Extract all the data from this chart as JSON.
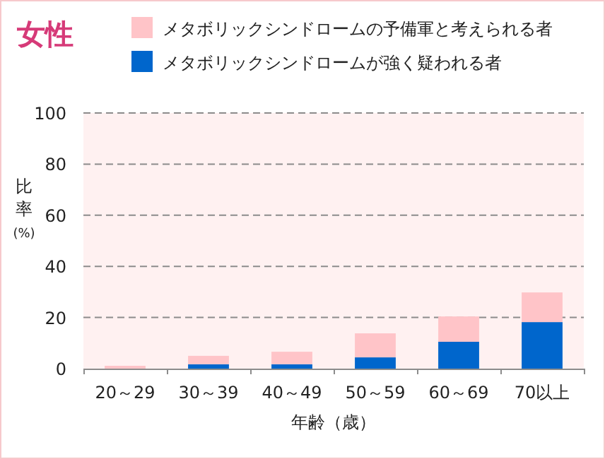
{
  "chart_data": {
    "type": "bar",
    "title": "女性",
    "stacked": true,
    "xlabel": "年齢（歳）",
    "ylabel": "比率(%)",
    "categories": [
      "20～29",
      "30～39",
      "40～49",
      "50～59",
      "60～69",
      "70以上"
    ],
    "series": [
      {
        "name": "メタボリックシンドロームが強く疑われる者",
        "color": "#0066cc",
        "values": [
          0,
          1.7,
          1.7,
          4.4,
          10.5,
          18.2
        ]
      },
      {
        "name": "メタボリックシンドロームの予備軍と考えられる者",
        "color": "#ffc4c8",
        "values": [
          1.1,
          3.3,
          4.9,
          9.4,
          9.9,
          11.6
        ]
      }
    ],
    "ylim": [
      0,
      100
    ],
    "yticks": [
      0,
      20,
      40,
      60,
      80,
      100
    ],
    "grid": "y",
    "legend": "top"
  }
}
